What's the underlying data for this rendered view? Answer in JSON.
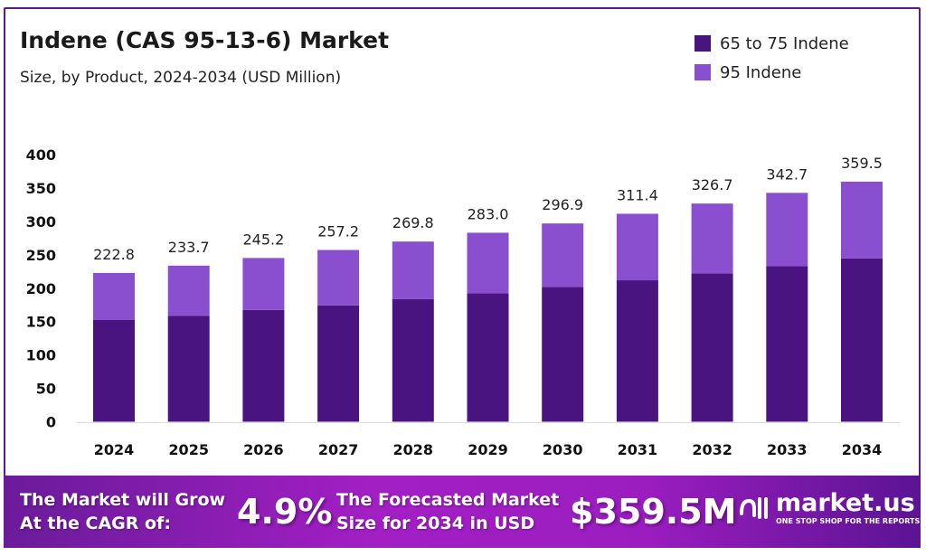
{
  "chart_data": {
    "type": "bar",
    "stacked": true,
    "title": "Indene (CAS 95-13-6) Market",
    "subtitle": "Size, by Product, 2024-2034 (USD Million)",
    "xlabel": "",
    "ylabel": "",
    "ylim": [
      0,
      400
    ],
    "yticks": [
      "0",
      "50",
      "100",
      "150",
      "200",
      "250",
      "300",
      "350",
      "400"
    ],
    "grid": false,
    "legend_position": "top-right",
    "categories": [
      "2024",
      "2025",
      "2026",
      "2027",
      "2028",
      "2029",
      "2030",
      "2031",
      "2032",
      "2033",
      "2034"
    ],
    "series": [
      {
        "name": "65 to 75 Indene",
        "color": "#4a1480",
        "values": [
          152.3,
          158.8,
          167.4,
          174.2,
          183.5,
          192.4,
          201.9,
          211.8,
          222.2,
          233.0,
          244.5
        ]
      },
      {
        "name": "95 Indene",
        "color": "#8a4fcf",
        "values": [
          70.5,
          74.9,
          77.8,
          83.0,
          86.3,
          90.6,
          95.0,
          99.6,
          104.5,
          109.7,
          115.0
        ]
      }
    ],
    "totals": [
      "222.8",
      "233.7",
      "245.2",
      "257.2",
      "269.8",
      "283.0",
      "296.9",
      "311.4",
      "326.7",
      "342.7",
      "359.5"
    ]
  },
  "banner": {
    "cagr_label_line1": "The Market will Grow",
    "cagr_label_line2": "At the CAGR of:",
    "cagr_value": "4.9%",
    "forecast_label_line1": "The Forecasted Market",
    "forecast_label_line2": "Size for 2034 in USD",
    "forecast_value": "$359.5M",
    "logo_name": "market.us",
    "logo_tagline": "ONE STOP SHOP FOR THE REPORTS"
  }
}
